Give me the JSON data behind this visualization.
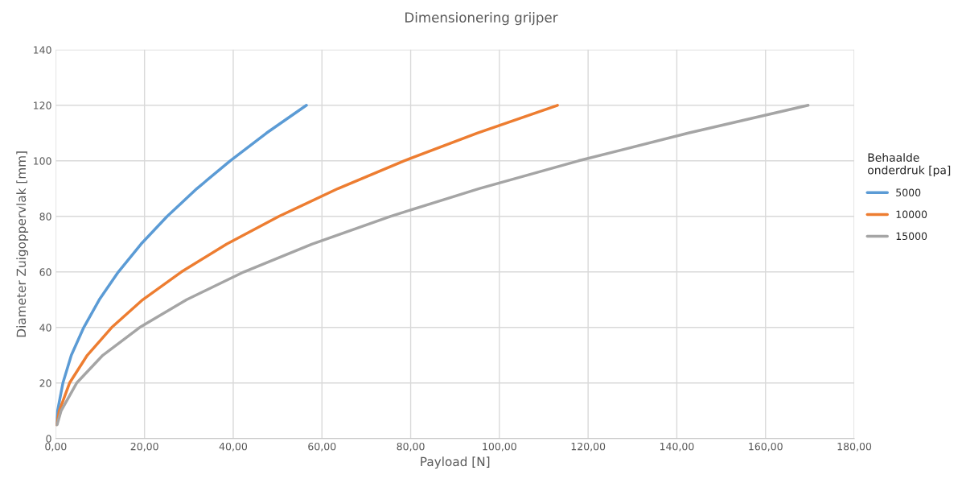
{
  "chart_data": {
    "type": "line",
    "title": "Dimensionering grijper",
    "xlabel": "Payload [N]",
    "ylabel": "Diameter Zuigoppervlak [mm]",
    "legend_title": "Behaalde\nonderdruk [pa]",
    "legend": "right",
    "grid": true,
    "marker": "none",
    "line_style": "solid",
    "xlim": [
      0,
      180
    ],
    "xticks": [
      {
        "value": 0,
        "label": "0,00"
      },
      {
        "value": 20,
        "label": "20,00"
      },
      {
        "value": 40,
        "label": "40,00"
      },
      {
        "value": 60,
        "label": "60,00"
      },
      {
        "value": 80,
        "label": "80,00"
      },
      {
        "value": 100,
        "label": "100,00"
      },
      {
        "value": 120,
        "label": "120,00"
      },
      {
        "value": 140,
        "label": "140,00"
      },
      {
        "value": 160,
        "label": "160,00"
      },
      {
        "value": 180,
        "label": "180,00"
      }
    ],
    "ylim": [
      0,
      140
    ],
    "yticks": [
      0,
      20,
      40,
      60,
      80,
      100,
      120,
      140
    ],
    "series": [
      {
        "name": "5000",
        "color": "#5b9bd5",
        "x": [
          0.1,
          0.4,
          1.6,
          3.5,
          6.3,
          9.8,
          14.1,
          19.2,
          25.1,
          31.8,
          39.3,
          47.5,
          56.5
        ],
        "values": [
          5,
          10,
          20,
          30,
          40,
          50,
          60,
          70,
          80,
          90,
          100,
          110,
          120
        ]
      },
      {
        "name": "10000",
        "color": "#ed7d31",
        "x": [
          0.2,
          0.8,
          3.1,
          7.1,
          12.6,
          19.6,
          28.3,
          38.5,
          50.3,
          63.6,
          78.5,
          95.0,
          113.1
        ],
        "values": [
          5,
          10,
          20,
          30,
          40,
          50,
          60,
          70,
          80,
          90,
          100,
          110,
          120
        ]
      },
      {
        "name": "15000",
        "color": "#a5a5a5",
        "x": [
          0.3,
          1.2,
          4.7,
          10.6,
          18.9,
          29.5,
          42.4,
          57.7,
          75.4,
          95.4,
          117.8,
          142.6,
          169.6
        ],
        "values": [
          5,
          10,
          20,
          30,
          40,
          50,
          60,
          70,
          80,
          90,
          100,
          110,
          120
        ]
      }
    ]
  }
}
